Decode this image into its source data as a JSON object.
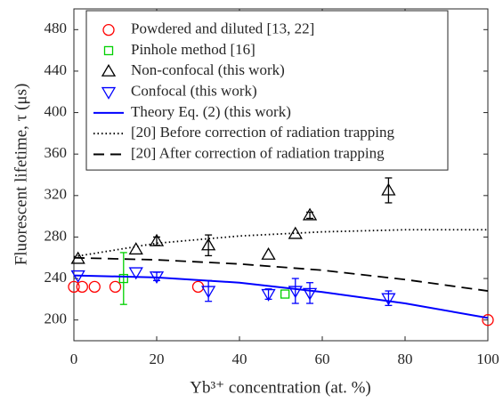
{
  "chart_data": {
    "type": "scatter",
    "x_label": "Yb³⁺ concentration (at. %)",
    "y_label": "Fluorescent lifetime, τ (μs)",
    "xlim": [
      0,
      100
    ],
    "xticks": [
      0,
      20,
      40,
      60,
      80,
      100
    ],
    "ylim": [
      180,
      500
    ],
    "yticks": [
      200,
      240,
      280,
      320,
      360,
      400,
      440,
      480
    ],
    "series": [
      {
        "name": "Powdered and diluted [13, 22]",
        "color": "#ff0000",
        "marker": "circle",
        "x": [
          0,
          2,
          5,
          10,
          30,
          100
        ],
        "values": [
          232,
          232,
          232,
          232,
          232,
          200
        ]
      },
      {
        "name": "Pinhole method [16]",
        "color": "#00d000",
        "marker": "square",
        "x": [
          12,
          51
        ],
        "values": [
          240,
          225
        ],
        "errors": [
          25,
          null
        ]
      },
      {
        "name": "Non-confocal (this work)",
        "color": "#000000",
        "marker": "triangle-up",
        "x": [
          1,
          15,
          20,
          32.5,
          47,
          53.5,
          57,
          76
        ],
        "values": [
          259,
          268,
          276,
          272,
          263,
          283,
          301,
          325
        ],
        "errors": [
          null,
          null,
          4,
          10,
          null,
          null,
          3,
          12
        ]
      },
      {
        "name": "Confocal (this work)",
        "color": "#0000ff",
        "marker": "triangle-down",
        "x": [
          1,
          15,
          20,
          32.5,
          47,
          53.5,
          57,
          76
        ],
        "values": [
          243,
          246,
          242,
          228,
          225,
          228,
          226,
          221
        ],
        "errors": [
          null,
          null,
          4,
          10,
          5,
          12,
          10,
          7
        ]
      },
      {
        "name": "Theory Eq. (2) (this work)",
        "color": "#0000ff",
        "line": "solid",
        "x": [
          0,
          20,
          40,
          60,
          80,
          100
        ],
        "values": [
          243,
          241,
          236,
          227,
          216,
          202
        ]
      },
      {
        "name": "[20] Before correction of radiation trapping",
        "color": "#000000",
        "line": "dotted",
        "x": [
          0,
          20,
          40,
          60,
          80,
          100
        ],
        "values": [
          261,
          274,
          281,
          285,
          287,
          287
        ]
      },
      {
        "name": "[20] After correction of radiation trapping",
        "color": "#000000",
        "line": "dashed",
        "x": [
          0,
          20,
          40,
          60,
          80,
          100
        ],
        "values": [
          260,
          258,
          254,
          248,
          239,
          228
        ]
      }
    ]
  }
}
